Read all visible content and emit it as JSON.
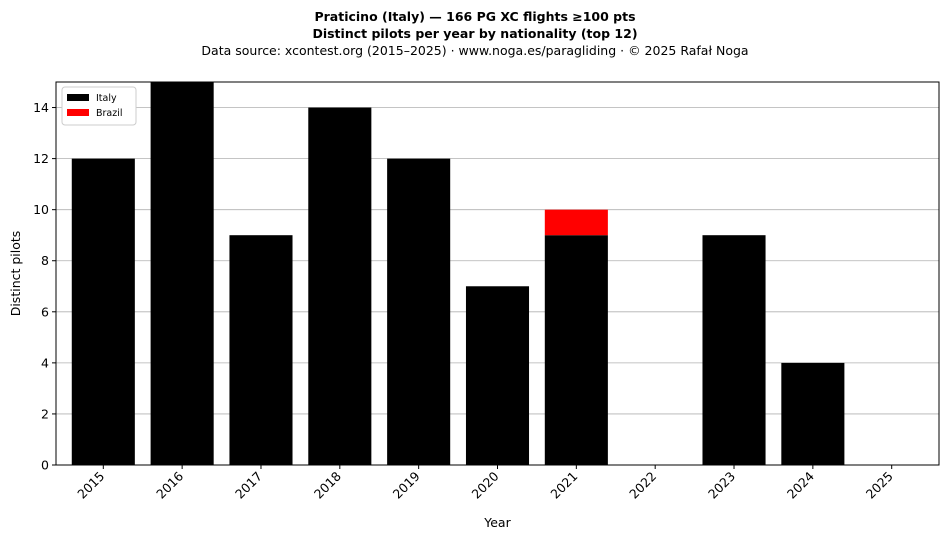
{
  "header": {
    "title": "Praticino (Italy)  —  166 PG XC flights ≥100 pts",
    "subtitle": "Distinct pilots per year by nationality (top 12)",
    "source": "Data source: xcontest.org (2015–2025)  ·  www.noga.es/paragliding  ·  © 2025 Rafał Noga"
  },
  "chart_data": {
    "type": "bar",
    "stacked": true,
    "categories": [
      "2015",
      "2016",
      "2017",
      "2018",
      "2019",
      "2020",
      "2021",
      "2022",
      "2023",
      "2024",
      "2025"
    ],
    "series": [
      {
        "name": "Italy",
        "color": "#000000",
        "values": [
          12,
          15,
          9,
          14,
          12,
          7,
          9,
          0,
          9,
          4,
          0
        ]
      },
      {
        "name": "Brazil",
        "color": "#ff0000",
        "values": [
          0,
          0,
          0,
          0,
          0,
          0,
          1,
          0,
          0,
          0,
          0
        ]
      }
    ],
    "xlabel": "Year",
    "ylabel": "Distinct pilots",
    "ylim": [
      0,
      15
    ],
    "yticks": [
      0,
      2,
      4,
      6,
      8,
      10,
      12,
      14
    ],
    "grid": "horizontal",
    "legend": "top-left"
  }
}
